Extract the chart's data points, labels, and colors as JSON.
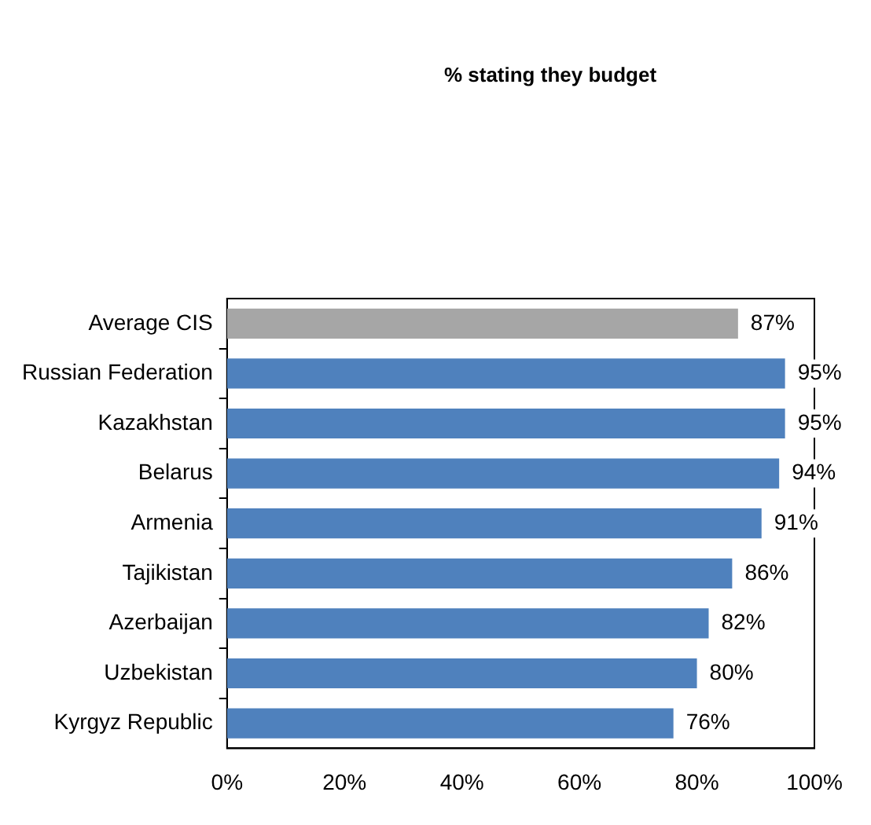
{
  "chart_data": {
    "type": "bar",
    "orientation": "horizontal",
    "title": "% stating they budget",
    "categories": [
      "Average CIS",
      "Russian Federation",
      "Kazakhstan",
      "Belarus",
      "Armenia",
      "Tajikistan",
      "Azerbaijan",
      "Uzbekistan",
      "Kyrgyz Republic"
    ],
    "values": [
      87,
      95,
      95,
      94,
      91,
      86,
      82,
      80,
      76
    ],
    "value_labels": [
      "87%",
      "95%",
      "95%",
      "94%",
      "91%",
      "86%",
      "82%",
      "80%",
      "76%"
    ],
    "colors": [
      "#a6a6a6",
      "#4f81bd",
      "#4f81bd",
      "#4f81bd",
      "#4f81bd",
      "#4f81bd",
      "#4f81bd",
      "#4f81bd",
      "#4f81bd"
    ],
    "xlim": [
      0,
      100
    ],
    "xticks": [
      {
        "value": 0,
        "label": "0%"
      },
      {
        "value": 20,
        "label": "20%"
      },
      {
        "value": 40,
        "label": "40%"
      },
      {
        "value": 60,
        "label": "60%"
      },
      {
        "value": 80,
        "label": "80%"
      },
      {
        "value": 100,
        "label": "100%"
      }
    ],
    "grid": false,
    "legend": false
  }
}
